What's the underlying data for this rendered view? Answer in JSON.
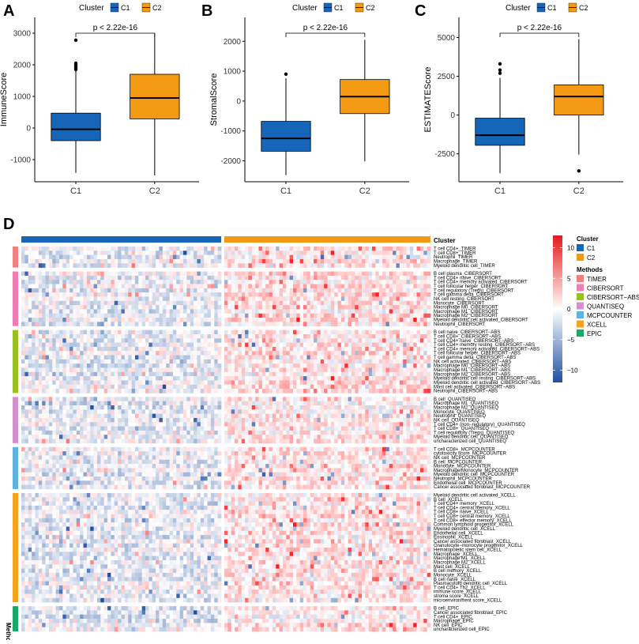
{
  "panel_letters": [
    "A",
    "B",
    "C",
    "D"
  ],
  "cluster_legend": {
    "title": "Cluster",
    "items": [
      {
        "label": "C1",
        "color": "#1565b8"
      },
      {
        "label": "C2",
        "color": "#f39a12"
      }
    ]
  },
  "chart_data": [
    {
      "type": "boxplot",
      "panel": "A",
      "ylabel": "ImmuneScore",
      "xlabel": "",
      "ylim": [
        -1700,
        3500
      ],
      "yticks": [
        -1000,
        0,
        1000,
        2000,
        3000
      ],
      "annotation": "p < 2.22e-16",
      "categories": [
        "C1",
        "C2"
      ],
      "boxes": [
        {
          "group": "C1",
          "color": "#1565b8",
          "min": -1420,
          "q1": -400,
          "median": -40,
          "q3": 470,
          "max": 1800,
          "outliers": [
            1850,
            1900,
            1950,
            2000,
            2050,
            2780
          ]
        },
        {
          "group": "C2",
          "color": "#f39a12",
          "min": -1500,
          "q1": 290,
          "median": 950,
          "q3": 1700,
          "max": 3000,
          "outliers": []
        }
      ]
    },
    {
      "type": "boxplot",
      "panel": "B",
      "ylabel": "StromalScore",
      "xlabel": "",
      "ylim": [
        -2700,
        2800
      ],
      "yticks": [
        -2000,
        -1000,
        0,
        1000,
        2000
      ],
      "annotation": "p < 2.22e-16",
      "categories": [
        "C1",
        "C2"
      ],
      "boxes": [
        {
          "group": "C1",
          "color": "#1565b8",
          "min": -2480,
          "q1": -1680,
          "median": -1250,
          "q3": -680,
          "max": 760,
          "outliers": [
            900
          ]
        },
        {
          "group": "C2",
          "color": "#f39a12",
          "min": -2020,
          "q1": -420,
          "median": 150,
          "q3": 720,
          "max": 2050,
          "outliers": []
        }
      ]
    },
    {
      "type": "boxplot",
      "panel": "C",
      "ylabel": "ESTIMATEScore",
      "xlabel": "",
      "ylim": [
        -4300,
        6300
      ],
      "yticks": [
        -2500,
        0,
        2500,
        5000
      ],
      "annotation": "p < 2.22e-16",
      "categories": [
        "C1",
        "C2"
      ],
      "boxes": [
        {
          "group": "C1",
          "color": "#1565b8",
          "min": -3750,
          "q1": -1950,
          "median": -1300,
          "q3": -200,
          "max": 2400,
          "outliers": [
            2700,
            2900,
            3300
          ]
        },
        {
          "group": "C2",
          "color": "#f39a12",
          "min": -2550,
          "q1": 0,
          "median": 1200,
          "q3": 1950,
          "max": 4900,
          "outliers": [
            -3600
          ]
        }
      ]
    },
    {
      "type": "heatmap",
      "panel": "D",
      "columns_legend_title": "Cluster",
      "methods_axis_label": "Methods",
      "color_scale": {
        "min": -12,
        "max": 12,
        "ticks": [
          10,
          5,
          0,
          -5,
          -10
        ],
        "low_color": "#1f4fa0",
        "mid_color": "#ffffff",
        "high_color": "#e41a1c"
      },
      "methods_legend": {
        "title": "Methods",
        "items": [
          {
            "label": "TIMER",
            "color": "#f08080"
          },
          {
            "label": "CIBERSORT",
            "color": "#f27bb4"
          },
          {
            "label": "CIBERSORT−ABS",
            "color": "#98c11f"
          },
          {
            "label": "QUANTISEQ",
            "color": "#d48fcf"
          },
          {
            "label": "MCPCOUNTER",
            "color": "#5fb3e0"
          },
          {
            "label": "XCELL",
            "color": "#f7a21b"
          },
          {
            "label": "EPIC",
            "color": "#19a866"
          }
        ]
      },
      "cluster_sizes": {
        "C1": 58,
        "C2": 60
      },
      "groups": [
        {
          "method": "TIMER",
          "rows": [
            "T cell CD4+_TIMER",
            "T cell CD8+_TIMER",
            "Neutrophil_TIMER",
            "Macrophage_TIMER",
            "Myeloid dendritic cell_TIMER"
          ]
        },
        {
          "method": "CIBERSORT",
          "rows": [
            "B cell plasma_CIBERSORT",
            "T cell CD4+ naive_CIBERSORT",
            "T cell CD4+ memory activated_CIBERSORT",
            "T cell follicular helper_CIBERSORT",
            "T cell regulatory (Tregs)_CIBERSORT",
            "T cell gamma delta_CIBERSORT",
            "NK cell resting_CIBERSORT",
            "Monocyte_CIBERSORT",
            "Macrophage M0_CIBERSORT",
            "Macrophage M1_CIBERSORT",
            "Macrophage M2_CIBERSORT",
            "Myeloid dendritic cell activated_CIBERSORT",
            "Neutrophil_CIBERSORT"
          ]
        },
        {
          "method": "CIBERSORT−ABS",
          "rows": [
            "B cell naive_CIBERSORT−ABS",
            "T cell CD8+_CIBERSORT−ABS",
            "T cell CD4+ naive_CIBERSORT−ABS",
            "T cell CD4+ memory resting_CIBERSORT−ABS",
            "T cell CD4+ memory activated_CIBERSORT−ABS",
            "T cell follicular helper_CIBERSORT−ABS",
            "T cell gamma delta_CIBERSORT−ABS",
            "NK cell activated_CIBERSORT−ABS",
            "Macrophage M0_CIBERSORT−ABS",
            "Macrophage M1_CIBERSORT−ABS",
            "Macrophage M2_CIBERSORT−ABS",
            "Myeloid dendritic cell resting_CIBERSORT−ABS",
            "Myeloid dendritic cell activated_CIBERSORT−ABS",
            "Mast cell activated_CIBERSORT−ABS",
            "Neutrophil_CIBERSORT−ABS"
          ]
        },
        {
          "method": "QUANTISEQ",
          "rows": [
            "B cell_QUANTISEQ",
            "Macrophage M1_QUANTISEQ",
            "Macrophage M2_QUANTISEQ",
            "Monocyte_QUANTISEQ",
            "Neutrophil_QUANTISEQ",
            "NK cell_QUANTISEQ",
            "T cell CD4+ (non−regulatory)_QUANTISEQ",
            "T cell CD8+_QUANTISEQ",
            "T cell regulatory (Tregs)_QUANTISEQ",
            "Myeloid dendritic cell_QUANTISEQ",
            "uncharacterized cell_QUANTISEQ"
          ]
        },
        {
          "method": "MCPCOUNTER",
          "rows": [
            "T cell CD8+_MCPCOUNTER",
            "cytotoxicity score_MCPCOUNTER",
            "NK cell_MCPCOUNTER",
            "B cell_MCPCOUNTER",
            "Monocyte_MCPCOUNTER",
            "Macrophage/Monocyte_MCPCOUNTER",
            "Myeloid dendritic cell_MCPCOUNTER",
            "Neutrophil_MCPCOUNTER",
            "Endothelial cell_MCPCOUNTER",
            "Cancer associated fibroblast_MCPCOUNTER"
          ]
        },
        {
          "method": "XCELL",
          "rows": [
            "Myeloid dendritic cell activated_XCELL",
            "B cell_XCELL",
            "T cell CD4+ memory_XCELL",
            "T cell CD4+ central memory_XCELL",
            "T cell CD8+ naive_XCELL",
            "T cell CD8+ central memory_XCELL",
            "T cell CD8+ effector memory_XCELL",
            "Common lymphoid progenitor_XCELL",
            "Myeloid dendritic cell_XCELL",
            "Endothelial cell_XCELL",
            "Eosinophil_XCELL",
            "Cancer associated fibroblast_XCELL",
            "Granulocyte−monocyte progenitor_XCELL",
            "Hematopoietic stem cell_XCELL",
            "Macrophage_XCELL",
            "Macrophage M1_XCELL",
            "Macrophage M2_XCELL",
            "Mast cell_XCELL",
            "B cell memory_XCELL",
            "Monocyte_XCELL",
            "B cell naive_XCELL",
            "Plasmacytoid dendritic cell_XCELL",
            "T cell CD4+ Th2_XCELL",
            "immune score_XCELL",
            "stroma score_XCELL",
            "microenvironment score_XCELL"
          ]
        },
        {
          "method": "EPIC",
          "rows": [
            "B cell_EPIC",
            "Cancer associated fibroblast_EPIC",
            "T cell CD4+_EPIC",
            "Macrophage_EPIC",
            "NK cell_EPIC",
            "uncharacterized cell_EPIC"
          ]
        }
      ]
    }
  ]
}
